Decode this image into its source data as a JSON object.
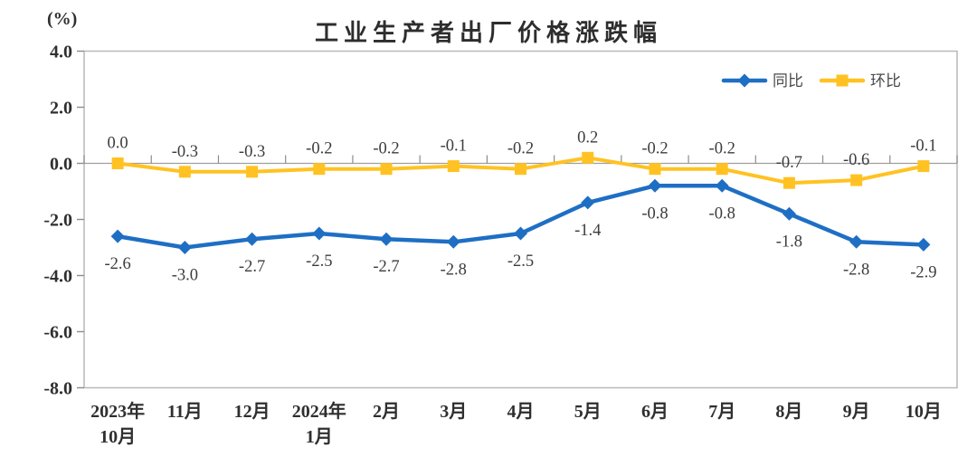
{
  "chart_data": {
    "type": "line",
    "title": "工业生产者出厂价格涨跌幅",
    "ylabel": "(%)",
    "categories": [
      "2023年\n10月",
      "11月",
      "12月",
      "2024年\n1月",
      "2月",
      "3月",
      "4月",
      "5月",
      "6月",
      "7月",
      "8月",
      "9月",
      "10月"
    ],
    "series": [
      {
        "name": "同比",
        "color": "#1e6fc4",
        "marker": "diamond",
        "label_position": "below",
        "values": [
          -2.6,
          -3.0,
          -2.7,
          -2.5,
          -2.7,
          -2.8,
          -2.5,
          -1.4,
          -0.8,
          -0.8,
          -1.8,
          -2.8,
          -2.9
        ],
        "labels": [
          "-2.6",
          "-3.0",
          "-2.7",
          "-2.5",
          "-2.7",
          "-2.8",
          "-2.5",
          "-1.4",
          "-0.8",
          "-0.8",
          "-1.8",
          "-2.8",
          "-2.9"
        ]
      },
      {
        "name": "环比",
        "color": "#ffc222",
        "marker": "square",
        "label_position": "above",
        "values": [
          0.0,
          -0.3,
          -0.3,
          -0.2,
          -0.2,
          -0.1,
          -0.2,
          0.2,
          -0.2,
          -0.2,
          -0.7,
          -0.6,
          -0.1
        ],
        "labels": [
          "0.0",
          "-0.3",
          "-0.3",
          "-0.2",
          "-0.2",
          "-0.1",
          "-0.2",
          "0.2",
          "-0.2",
          "-0.2",
          "-0.7",
          "-0.6",
          "-0.1"
        ]
      }
    ],
    "ylim": [
      -8,
      4
    ],
    "yticks": [
      "4.0",
      "2.0",
      "0.0",
      "-2.0",
      "-4.0",
      "-6.0",
      "-8.0"
    ],
    "grid": false,
    "legend_position": "top-right",
    "colors": {
      "axis_border": "#b9b9b9",
      "zero_line": "#9e9e9e",
      "tick": "#8c8c8c",
      "axis_text": "#2f2f2f",
      "data_label_text": "#3c3c3c",
      "legend_text": "#4a4a4a"
    }
  }
}
